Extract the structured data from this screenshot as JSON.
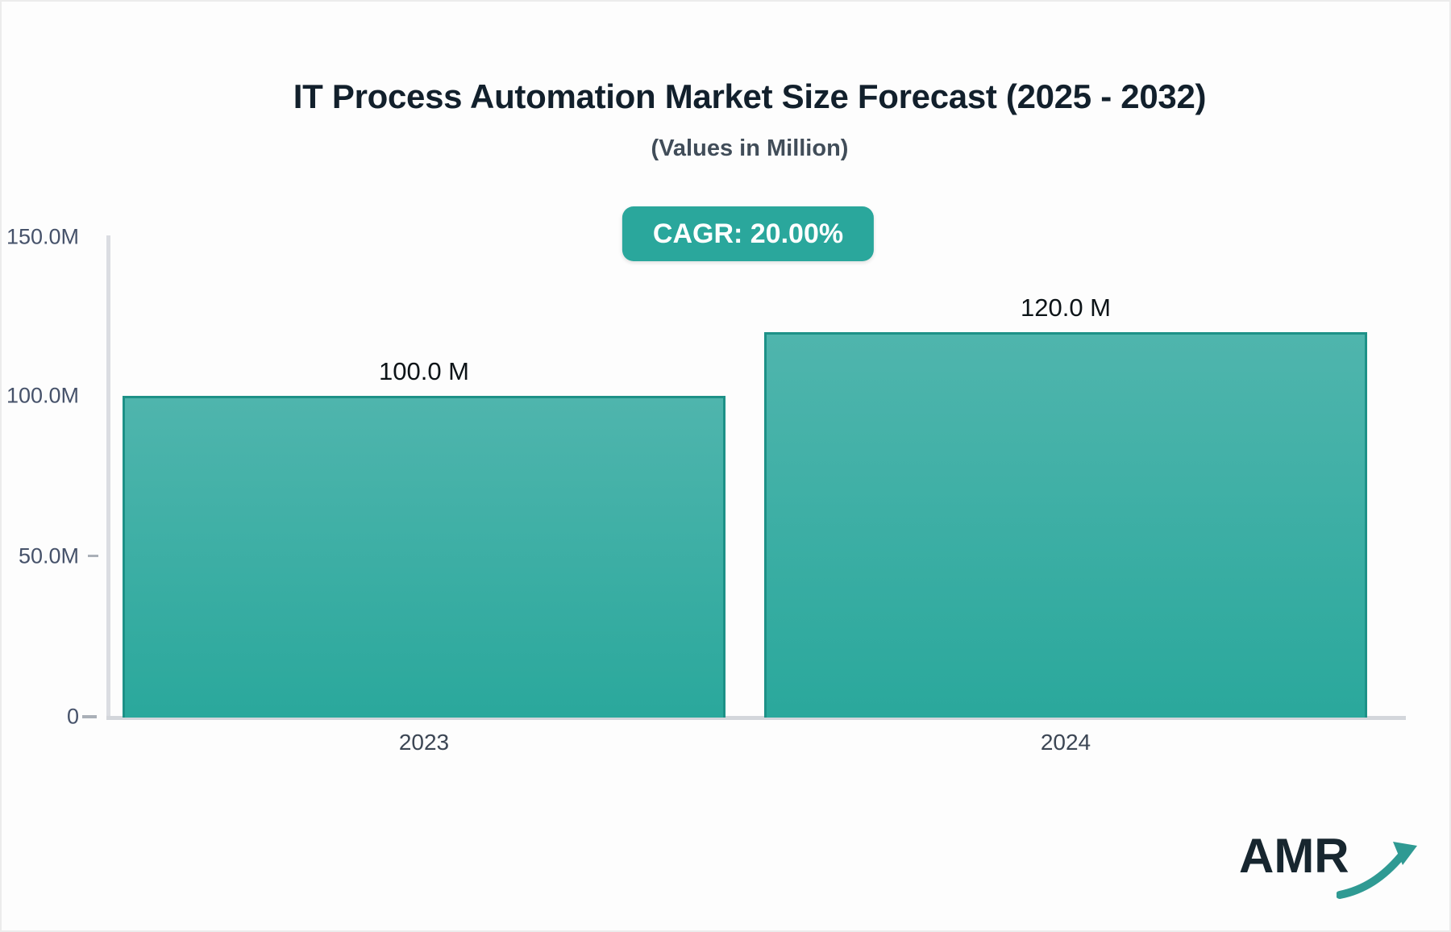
{
  "chart_data": {
    "type": "bar",
    "title": "IT Process Automation Market Size Forecast (2025 - 2032)",
    "subtitle": "(Values in Million)",
    "cagr_label": "CAGR: 20.00%",
    "categories": [
      "2023",
      "2024"
    ],
    "values": [
      100.0,
      120.0
    ],
    "bar_labels": [
      "100.0 M",
      "120.0 M"
    ],
    "unit": "Million",
    "ylim": [
      0,
      150
    ],
    "ytick_labels": [
      "150.0M",
      "100.0M",
      "50.0M",
      "0"
    ],
    "grid": false,
    "legend": false,
    "colors": {
      "accent": "#2aa79c",
      "bar_gradient_top": "#4fb5ad",
      "bar_gradient_bottom": "#2aa89c",
      "bar_border": "#1d9187",
      "badge_background": "#2aa79c",
      "axis_line": "#d3d6db",
      "logo_arrow": "#2f9a93"
    }
  },
  "logo": {
    "text": "AMR"
  }
}
